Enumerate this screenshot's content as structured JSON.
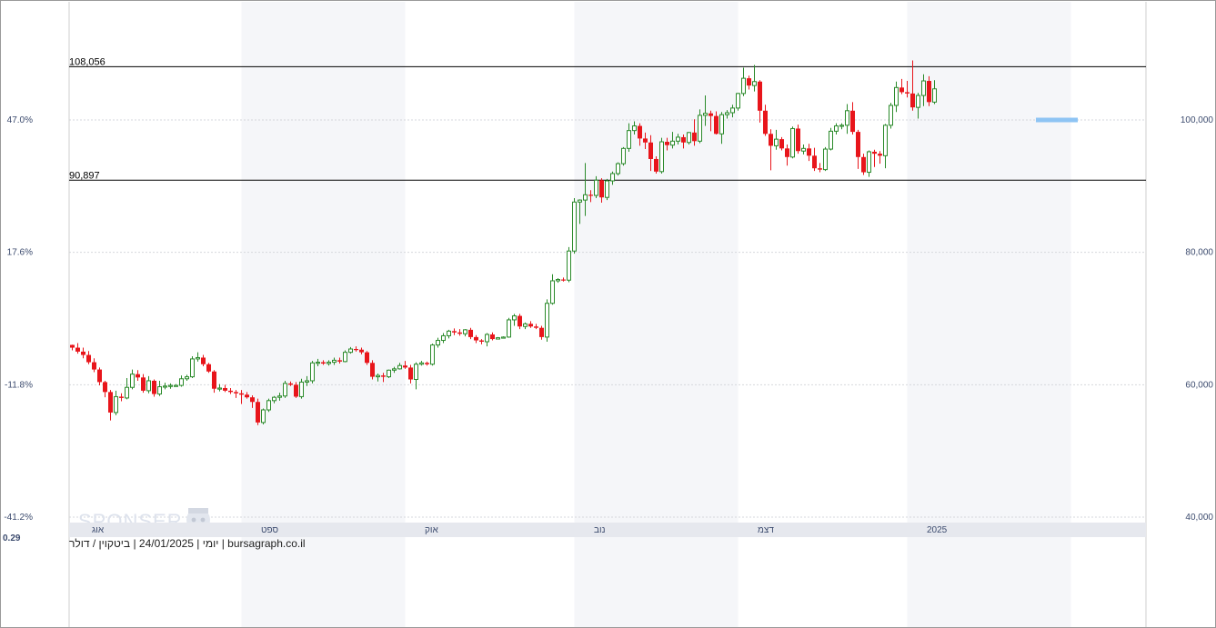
{
  "chart_data": {
    "type": "candlestick",
    "title": "ביטקוין / דולר",
    "footer": {
      "site": "bursagraph.co.il",
      "instrument": "ביטקוין / דולר",
      "date": "24/01/2025",
      "period": "יומי"
    },
    "watermark": "SPONSER",
    "volume_label": "0.29",
    "x_ticks": [
      {
        "label": "אוג",
        "index": 1
      },
      {
        "label": "ספט",
        "index": 32
      },
      {
        "label": "אוק",
        "index": 62
      },
      {
        "label": "נוב",
        "index": 93
      },
      {
        "label": "דצמ",
        "index": 123
      },
      {
        "label": "2025",
        "index": 154
      }
    ],
    "shaded_months": [
      [
        31,
        61
      ],
      [
        92,
        122
      ],
      [
        153,
        183
      ]
    ],
    "y_right_ticks": [
      "100,000",
      "80,000",
      "60,000",
      "40,000"
    ],
    "y_right_values": [
      100000,
      80000,
      60000,
      40000
    ],
    "y_left_ticks": [
      "47.0%",
      "17.6%",
      "-11.8%",
      "-41.2%"
    ],
    "y_left_values": [
      100000,
      80000,
      60000,
      40000
    ],
    "ylim": [
      40000,
      108700
    ],
    "levels": [
      {
        "label": "108,056",
        "value": 108056
      },
      {
        "label": "90,897",
        "value": 90897
      }
    ],
    "marker": {
      "value": 100000,
      "from_index": 177,
      "to_index": 184
    },
    "up_color": "#2a8a2a",
    "down_color": "#e8151b",
    "grid": true,
    "candles": [
      [
        66020,
        66050,
        65200,
        65600
      ],
      [
        65600,
        66300,
        64700,
        65000
      ],
      [
        65000,
        65600,
        64000,
        64500
      ],
      [
        64500,
        65100,
        63100,
        63400
      ],
      [
        63400,
        64000,
        61900,
        62300
      ],
      [
        62300,
        62600,
        59900,
        60400
      ],
      [
        60400,
        60600,
        58100,
        58900
      ],
      [
        58900,
        59200,
        54600,
        55800
      ],
      [
        55800,
        59100,
        55400,
        58200
      ],
      [
        58200,
        58700,
        57500,
        58000
      ],
      [
        58000,
        61000,
        57800,
        59600
      ],
      [
        59600,
        62300,
        59300,
        61600
      ],
      [
        61600,
        62200,
        60600,
        61100
      ],
      [
        61100,
        61600,
        58800,
        59100
      ],
      [
        59100,
        61300,
        58700,
        60600
      ],
      [
        60600,
        60800,
        58200,
        58600
      ],
      [
        58600,
        60600,
        58300,
        59700
      ],
      [
        59700,
        60300,
        59300,
        59800
      ],
      [
        59800,
        60200,
        59400,
        59900
      ],
      [
        59900,
        60100,
        59700,
        59900
      ],
      [
        59900,
        61400,
        59700,
        60900
      ],
      [
        60900,
        61500,
        60600,
        61200
      ],
      [
        61200,
        64300,
        61000,
        63900
      ],
      [
        63900,
        64900,
        63500,
        64100
      ],
      [
        64100,
        64500,
        62800,
        63100
      ],
      [
        63100,
        63300,
        61800,
        62000
      ],
      [
        62000,
        62200,
        58800,
        59400
      ],
      [
        59400,
        60100,
        59000,
        59500
      ],
      [
        59500,
        60000,
        58900,
        59100
      ],
      [
        59100,
        59500,
        58600,
        58900
      ],
      [
        58900,
        59200,
        58000,
        58700
      ],
      [
        58700,
        59200,
        57100,
        58500
      ],
      [
        58500,
        58900,
        57900,
        58100
      ],
      [
        58100,
        58400,
        56500,
        57400
      ],
      [
        57400,
        57900,
        53900,
        54300
      ],
      [
        54300,
        56400,
        54000,
        56200
      ],
      [
        56200,
        57900,
        55900,
        57600
      ],
      [
        57600,
        58300,
        57200,
        58100
      ],
      [
        58100,
        58800,
        57600,
        58300
      ],
      [
        58300,
        60600,
        58000,
        60200
      ],
      [
        60200,
        60500,
        59800,
        60000
      ],
      [
        60000,
        60400,
        58000,
        58200
      ],
      [
        58200,
        60900,
        57900,
        60400
      ],
      [
        60400,
        61300,
        59800,
        60600
      ],
      [
        60600,
        63600,
        60200,
        63300
      ],
      [
        63300,
        63900,
        62800,
        63400
      ],
      [
        63400,
        63700,
        63000,
        63200
      ],
      [
        63200,
        63700,
        62900,
        63400
      ],
      [
        63400,
        64100,
        63000,
        63700
      ],
      [
        63700,
        64100,
        63200,
        63500
      ],
      [
        63500,
        65200,
        63400,
        64900
      ],
      [
        64900,
        65700,
        64700,
        65400
      ],
      [
        65400,
        65800,
        65000,
        65300
      ],
      [
        65300,
        65600,
        64600,
        64900
      ],
      [
        64900,
        65100,
        63000,
        63300
      ],
      [
        63300,
        63700,
        60800,
        61200
      ],
      [
        61200,
        61700,
        60500,
        61400
      ],
      [
        61400,
        61800,
        60400,
        61200
      ],
      [
        61200,
        62300,
        61000,
        62200
      ],
      [
        62200,
        62700,
        61800,
        62400
      ],
      [
        62400,
        63300,
        62300,
        62900
      ],
      [
        62900,
        63600,
        62400,
        62600
      ],
      [
        62600,
        63000,
        60200,
        60800
      ],
      [
        60800,
        63400,
        59300,
        63100
      ],
      [
        63100,
        63600,
        62900,
        63300
      ],
      [
        63300,
        63500,
        62900,
        63100
      ],
      [
        63100,
        66200,
        62900,
        66000
      ],
      [
        66000,
        67100,
        65600,
        66700
      ],
      [
        66700,
        67800,
        66300,
        67400
      ],
      [
        67400,
        68300,
        67000,
        68100
      ],
      [
        68100,
        68500,
        67500,
        67900
      ],
      [
        67900,
        68400,
        67400,
        67700
      ],
      [
        67700,
        68400,
        67300,
        68300
      ],
      [
        68300,
        68600,
        66900,
        67200
      ],
      [
        67200,
        67500,
        66300,
        66700
      ],
      [
        66700,
        66900,
        66100,
        66500
      ],
      [
        66500,
        67800,
        65800,
        67600
      ],
      [
        67600,
        67900,
        66700,
        66900
      ],
      [
        66900,
        67200,
        66900,
        67100
      ],
      [
        67100,
        67300,
        67000,
        67200
      ],
      [
        67200,
        70100,
        67100,
        69800
      ],
      [
        69800,
        70700,
        68900,
        70400
      ],
      [
        70400,
        70700,
        68400,
        68800
      ],
      [
        68800,
        69400,
        68400,
        69200
      ],
      [
        69200,
        69600,
        68600,
        68800
      ],
      [
        68800,
        69200,
        68400,
        68600
      ],
      [
        68600,
        68900,
        66800,
        67200
      ],
      [
        67200,
        72900,
        66500,
        72300
      ],
      [
        72300,
        76700,
        72100,
        75700
      ],
      [
        75700,
        76100,
        75400,
        75900
      ],
      [
        75900,
        76200,
        75600,
        75800
      ],
      [
        75800,
        80800,
        75500,
        80200
      ],
      [
        80200,
        88200,
        79800,
        87600
      ],
      [
        87600,
        88000,
        84300,
        87900
      ],
      [
        87900,
        93500,
        85500,
        88700
      ],
      [
        88700,
        89400,
        87600,
        88600
      ],
      [
        88600,
        91500,
        88200,
        90900
      ],
      [
        90900,
        91200,
        87500,
        88300
      ],
      [
        88300,
        91100,
        87900,
        90800
      ],
      [
        90800,
        92200,
        90200,
        91900
      ],
      [
        91900,
        93600,
        91600,
        93400
      ],
      [
        93400,
        95900,
        93100,
        95700
      ],
      [
        95700,
        99500,
        95200,
        98400
      ],
      [
        98400,
        99800,
        97800,
        99100
      ],
      [
        99100,
        99500,
        96100,
        97200
      ],
      [
        97200,
        98100,
        95600,
        96600
      ],
      [
        96600,
        97700,
        92300,
        94100
      ],
      [
        94100,
        94500,
        91900,
        92200
      ],
      [
        92200,
        97300,
        91900,
        96700
      ],
      [
        96700,
        97300,
        95400,
        96200
      ],
      [
        96200,
        98200,
        95700,
        96800
      ],
      [
        96800,
        97900,
        96300,
        97400
      ],
      [
        97400,
        97800,
        95700,
        96600
      ],
      [
        96600,
        98200,
        96300,
        98100
      ],
      [
        98100,
        100100,
        96100,
        96800
      ],
      [
        96800,
        101600,
        96500,
        100700
      ],
      [
        100700,
        103700,
        99100,
        101000
      ],
      [
        101000,
        101400,
        98300,
        100600
      ],
      [
        100600,
        101300,
        97800,
        97900
      ],
      [
        97900,
        101200,
        96400,
        100800
      ],
      [
        100800,
        101500,
        100200,
        101100
      ],
      [
        101100,
        102300,
        100400,
        101800
      ],
      [
        101800,
        104100,
        101400,
        104000
      ],
      [
        104000,
        107900,
        103600,
        106300
      ],
      [
        106300,
        106700,
        104600,
        105200
      ],
      [
        105200,
        108300,
        104300,
        105800
      ],
      [
        105800,
        106000,
        99600,
        101400
      ],
      [
        101400,
        102300,
        97600,
        97900
      ],
      [
        97900,
        98600,
        92400,
        96100
      ],
      [
        96100,
        98500,
        95500,
        97100
      ],
      [
        97100,
        97400,
        95400,
        95700
      ],
      [
        95700,
        96300,
        93100,
        94400
      ],
      [
        94400,
        99000,
        94200,
        98700
      ],
      [
        98700,
        99300,
        94900,
        95300
      ],
      [
        95300,
        96300,
        94800,
        95700
      ],
      [
        95700,
        96400,
        93800,
        94600
      ],
      [
        94600,
        95800,
        92300,
        92700
      ],
      [
        92700,
        93500,
        92100,
        92500
      ],
      [
        92500,
        95900,
        92300,
        95600
      ],
      [
        95600,
        98800,
        95400,
        98300
      ],
      [
        98300,
        99500,
        97800,
        99100
      ],
      [
        99100,
        99500,
        98600,
        99200
      ],
      [
        99200,
        102400,
        97900,
        101400
      ],
      [
        101400,
        102700,
        97800,
        98200
      ],
      [
        98200,
        98500,
        92600,
        94400
      ],
      [
        94400,
        94900,
        91700,
        92100
      ],
      [
        92100,
        95400,
        91400,
        95200
      ],
      [
        95200,
        95500,
        92900,
        94900
      ],
      [
        94900,
        95300,
        93400,
        94600
      ],
      [
        94600,
        99400,
        92700,
        99200
      ],
      [
        99200,
        102600,
        98700,
        102200
      ],
      [
        102200,
        105800,
        101200,
        104900
      ],
      [
        104900,
        106200,
        103900,
        104200
      ],
      [
        104200,
        105900,
        103400,
        104000
      ],
      [
        104000,
        109000,
        101400,
        101900
      ],
      [
        101900,
        104100,
        100200,
        103700
      ],
      [
        103700,
        106900,
        102100,
        105900
      ],
      [
        105900,
        106600,
        102100,
        102700
      ],
      [
        102700,
        106000,
        102400,
        104700
      ]
    ]
  }
}
